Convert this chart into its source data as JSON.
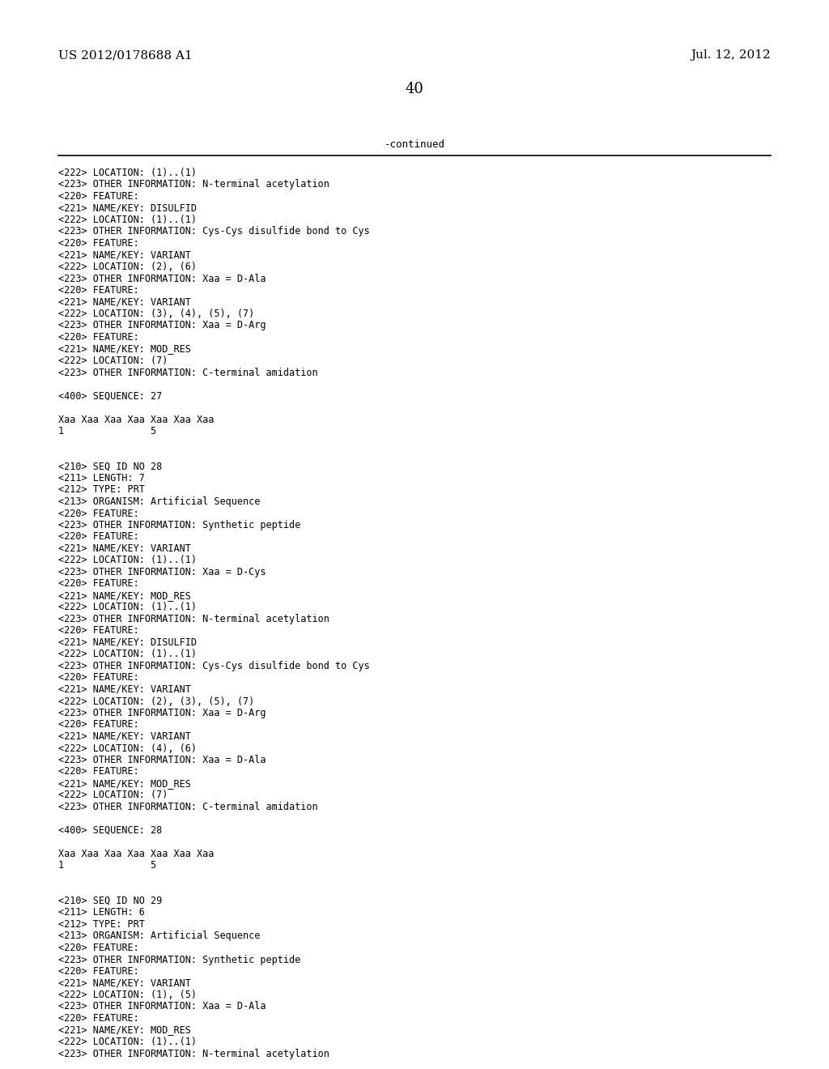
{
  "header_left": "US 2012/0178688 A1",
  "header_right": "Jul. 12, 2012",
  "page_number": "40",
  "continued_label": "-continued",
  "background_color": "#ffffff",
  "text_color": "#000000",
  "font_size": 8.5,
  "header_font_size": 11,
  "page_num_font_size": 13,
  "content_lines": [
    "<222> LOCATION: (1)..(1)",
    "<223> OTHER INFORMATION: N-terminal acetylation",
    "<220> FEATURE:",
    "<221> NAME/KEY: DISULFID",
    "<222> LOCATION: (1)..(1)",
    "<223> OTHER INFORMATION: Cys-Cys disulfide bond to Cys",
    "<220> FEATURE:",
    "<221> NAME/KEY: VARIANT",
    "<222> LOCATION: (2), (6)",
    "<223> OTHER INFORMATION: Xaa = D-Ala",
    "<220> FEATURE:",
    "<221> NAME/KEY: VARIANT",
    "<222> LOCATION: (3), (4), (5), (7)",
    "<223> OTHER INFORMATION: Xaa = D-Arg",
    "<220> FEATURE:",
    "<221> NAME/KEY: MOD_RES",
    "<222> LOCATION: (7)",
    "<223> OTHER INFORMATION: C-terminal amidation",
    "",
    "<400> SEQUENCE: 27",
    "",
    "Xaa Xaa Xaa Xaa Xaa Xaa Xaa",
    "1               5",
    "",
    "",
    "<210> SEQ ID NO 28",
    "<211> LENGTH: 7",
    "<212> TYPE: PRT",
    "<213> ORGANISM: Artificial Sequence",
    "<220> FEATURE:",
    "<223> OTHER INFORMATION: Synthetic peptide",
    "<220> FEATURE:",
    "<221> NAME/KEY: VARIANT",
    "<222> LOCATION: (1)..(1)",
    "<223> OTHER INFORMATION: Xaa = D-Cys",
    "<220> FEATURE:",
    "<221> NAME/KEY: MOD_RES",
    "<222> LOCATION: (1)..(1)",
    "<223> OTHER INFORMATION: N-terminal acetylation",
    "<220> FEATURE:",
    "<221> NAME/KEY: DISULFID",
    "<222> LOCATION: (1)..(1)",
    "<223> OTHER INFORMATION: Cys-Cys disulfide bond to Cys",
    "<220> FEATURE:",
    "<221> NAME/KEY: VARIANT",
    "<222> LOCATION: (2), (3), (5), (7)",
    "<223> OTHER INFORMATION: Xaa = D-Arg",
    "<220> FEATURE:",
    "<221> NAME/KEY: VARIANT",
    "<222> LOCATION: (4), (6)",
    "<223> OTHER INFORMATION: Xaa = D-Ala",
    "<220> FEATURE:",
    "<221> NAME/KEY: MOD_RES",
    "<222> LOCATION: (7)",
    "<223> OTHER INFORMATION: C-terminal amidation",
    "",
    "<400> SEQUENCE: 28",
    "",
    "Xaa Xaa Xaa Xaa Xaa Xaa Xaa",
    "1               5",
    "",
    "",
    "<210> SEQ ID NO 29",
    "<211> LENGTH: 6",
    "<212> TYPE: PRT",
    "<213> ORGANISM: Artificial Sequence",
    "<220> FEATURE:",
    "<223> OTHER INFORMATION: Synthetic peptide",
    "<220> FEATURE:",
    "<221> NAME/KEY: VARIANT",
    "<222> LOCATION: (1), (5)",
    "<223> OTHER INFORMATION: Xaa = D-Ala",
    "<220> FEATURE:",
    "<221> NAME/KEY: MOD_RES",
    "<222> LOCATION: (1)..(1)",
    "<223> OTHER INFORMATION: N-terminal acetylation"
  ]
}
